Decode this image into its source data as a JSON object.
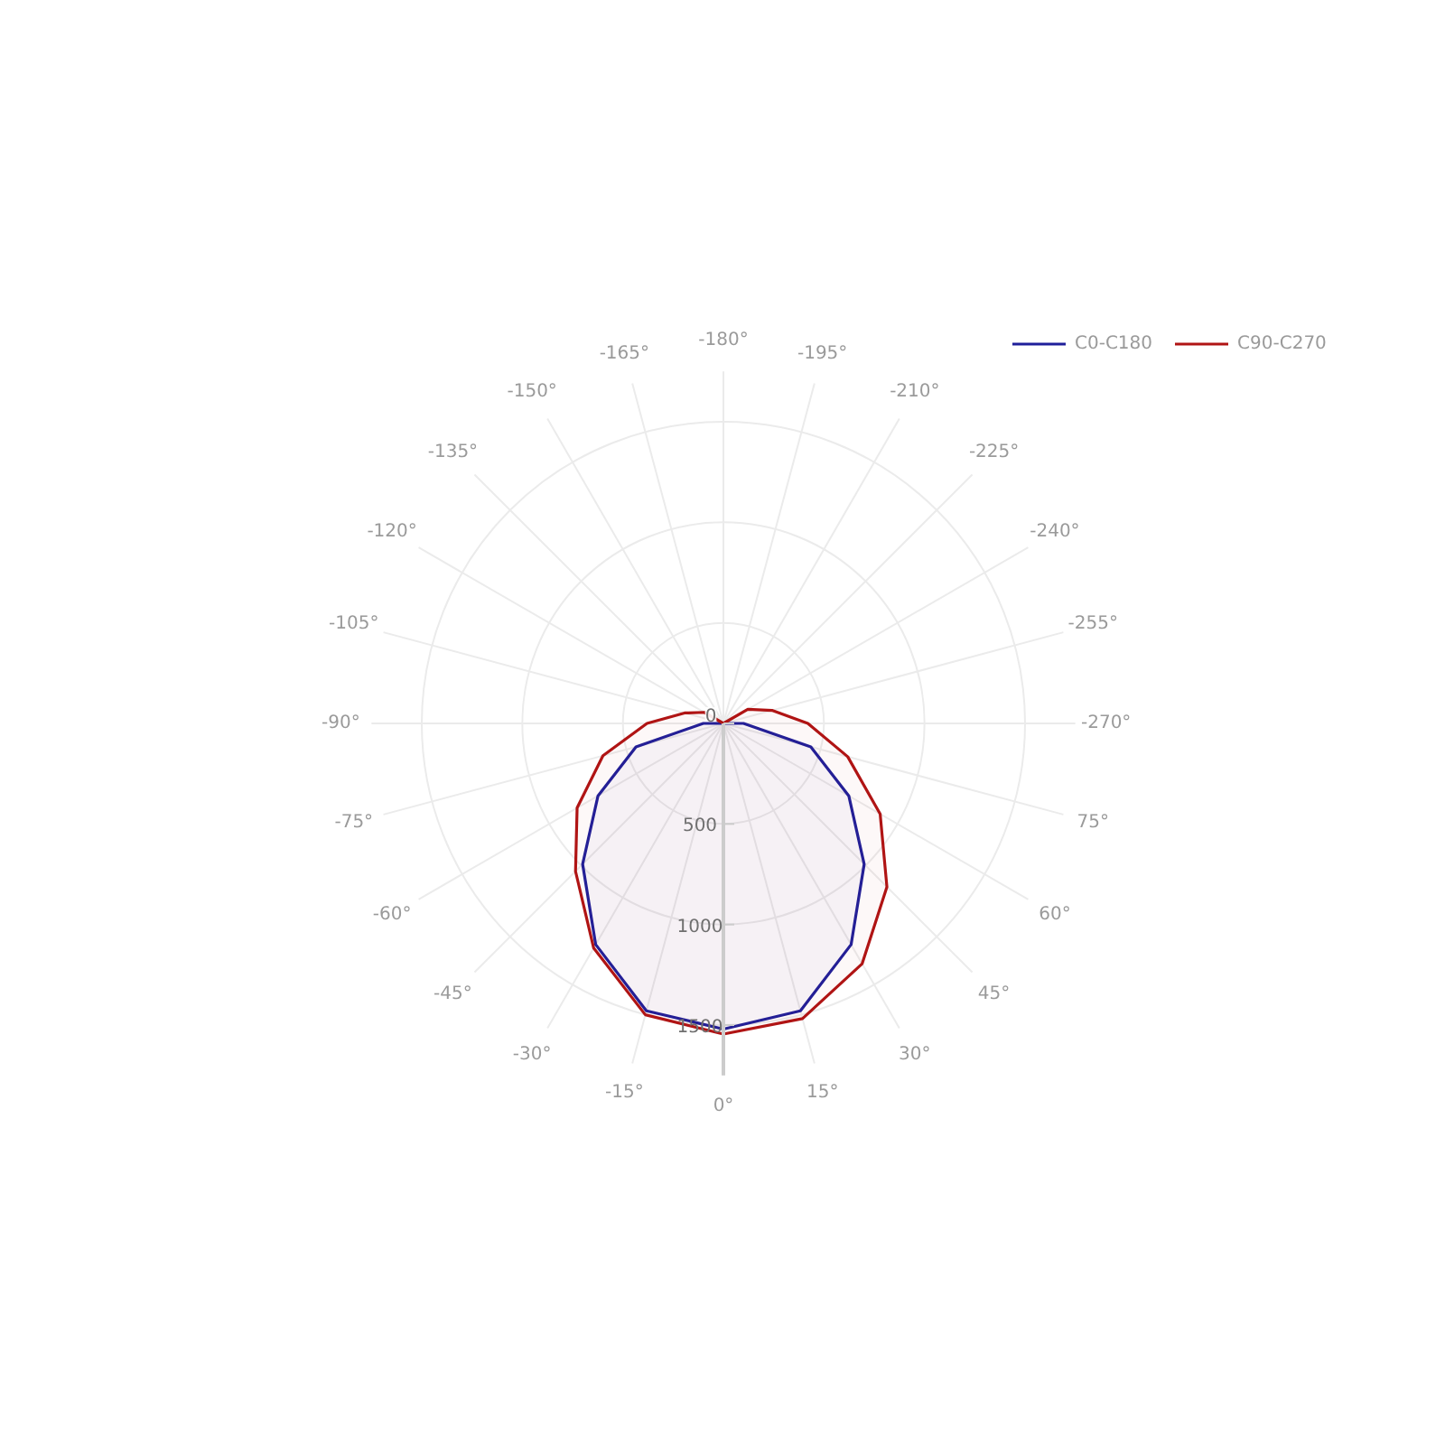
{
  "chart_data": {
    "type": "radar",
    "categories": [
      "-180°",
      "-195°",
      "-210°",
      "-225°",
      "-240°",
      "-255°",
      "-270°",
      "75°",
      "60°",
      "45°",
      "30°",
      "15°",
      "0°",
      "-15°",
      "-30°",
      "-45°",
      "-60°",
      "-75°",
      "-90°",
      "-105°",
      "-120°",
      "-135°",
      "-150°",
      "-165°"
    ],
    "series": [
      {
        "name": "C0-C180",
        "color": "#1f1f9a",
        "values": [
          0,
          0,
          0,
          0,
          0,
          0,
          100,
          450,
          720,
          990,
          1270,
          1480,
          1520,
          1480,
          1270,
          990,
          720,
          450,
          100,
          0,
          0,
          0,
          0,
          0
        ]
      },
      {
        "name": "C90-C270",
        "color": "#b01414",
        "values": [
          0,
          0,
          0,
          0,
          140,
          250,
          420,
          640,
          900,
          1150,
          1380,
          1520,
          1545,
          1500,
          1290,
          1040,
          840,
          620,
          380,
          200,
          110,
          0,
          0,
          0
        ]
      }
    ],
    "ylim": [
      0,
      1750
    ],
    "yticks": [
      {
        "value": 0,
        "label": "0"
      },
      {
        "value": 500,
        "label": "500"
      },
      {
        "value": 1000,
        "label": "1000"
      },
      {
        "value": 1500,
        "label": "1500"
      }
    ],
    "grid": true,
    "legend": "top right"
  }
}
